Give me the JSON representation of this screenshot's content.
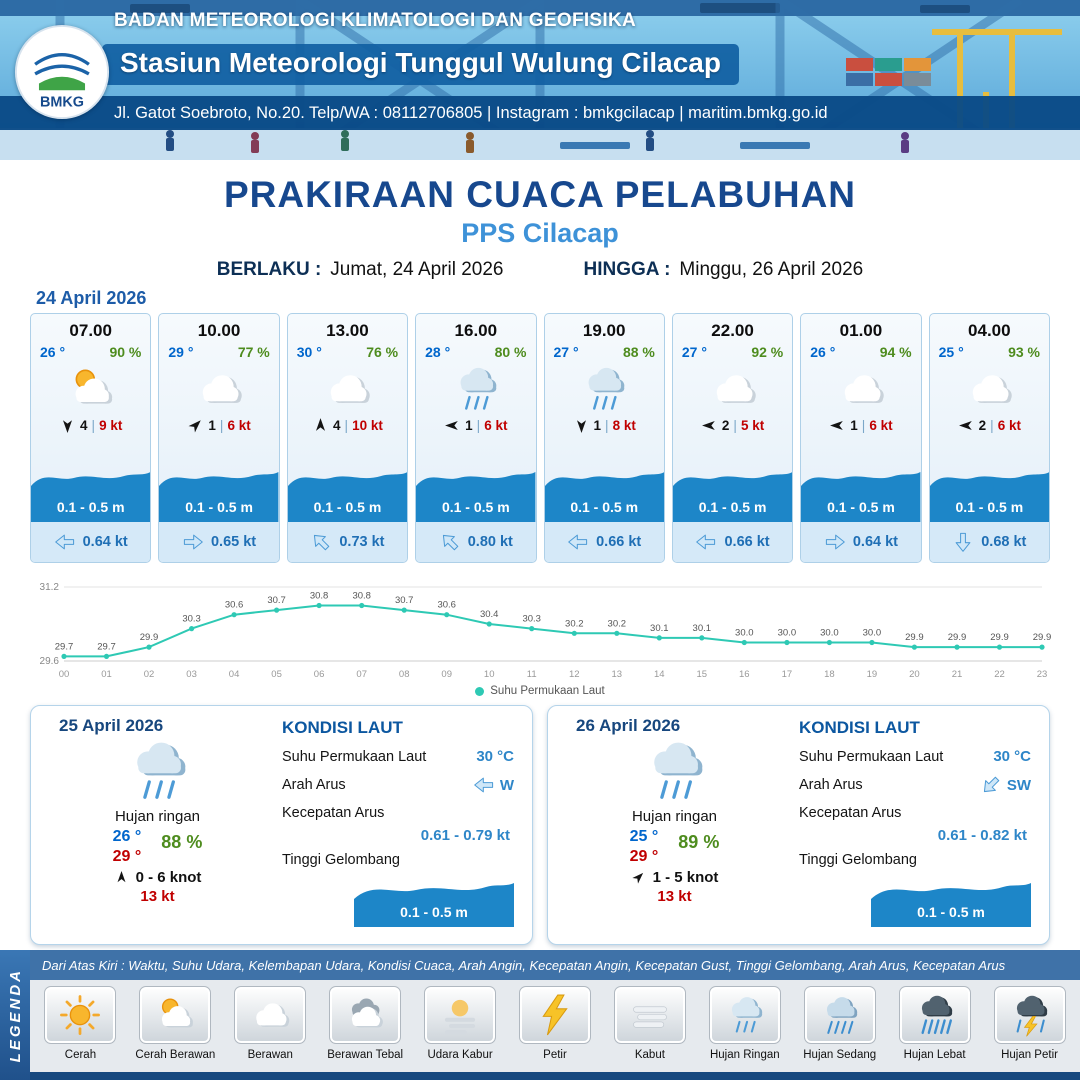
{
  "header": {
    "logo_text": "BMKG",
    "agency": "BADAN METEOROLOGI KLIMATOLOGI DAN GEOFISIKA",
    "station": "Stasiun Meteorologi Tunggul Wulung Cilacap",
    "contact": "Jl. Gatot Soebroto, No.20. Telp/WA : 08112706805 | Instagram : bmkgcilacap | maritim.bmkg.go.id"
  },
  "title": {
    "main": "PRAKIRAAN CUACA PELABUHAN",
    "sub": "PPS Cilacap",
    "valid_from_label": "BERLAKU :",
    "valid_from": "Jumat, 24 April 2026",
    "valid_to_label": "HINGGA :",
    "valid_to": "Minggu, 26 April 2026"
  },
  "hourly_date": "24 April 2026",
  "hourly": [
    {
      "time": "07.00",
      "temp": "26 °",
      "humidity": "90 %",
      "icon": "cerah-berawan",
      "wind_dir": "s",
      "wind_value": "4",
      "wind_speed": "9 kt",
      "wave": "0.1 - 0.5 m",
      "current_dir": "w",
      "current_speed": "0.64 kt"
    },
    {
      "time": "10.00",
      "temp": "29 °",
      "humidity": "77 %",
      "icon": "berawan",
      "wind_dir": "ne",
      "wind_value": "1",
      "wind_speed": "6 kt",
      "wave": "0.1 - 0.5 m",
      "current_dir": "e",
      "current_speed": "0.65 kt"
    },
    {
      "time": "13.00",
      "temp": "30 °",
      "humidity": "76 %",
      "icon": "berawan",
      "wind_dir": "n",
      "wind_value": "4",
      "wind_speed": "10 kt",
      "wave": "0.1 - 0.5 m",
      "current_dir": "nw",
      "current_speed": "0.73 kt"
    },
    {
      "time": "16.00",
      "temp": "28 °",
      "humidity": "80 %",
      "icon": "hujan-ringan",
      "wind_dir": "w",
      "wind_value": "1",
      "wind_speed": "6 kt",
      "wave": "0.1 - 0.5 m",
      "current_dir": "nw",
      "current_speed": "0.80 kt"
    },
    {
      "time": "19.00",
      "temp": "27 °",
      "humidity": "88 %",
      "icon": "hujan-ringan",
      "wind_dir": "s",
      "wind_value": "1",
      "wind_speed": "8 kt",
      "wave": "0.1 - 0.5 m",
      "current_dir": "w",
      "current_speed": "0.66 kt"
    },
    {
      "time": "22.00",
      "temp": "27 °",
      "humidity": "92 %",
      "icon": "berawan",
      "wind_dir": "w",
      "wind_value": "2",
      "wind_speed": "5 kt",
      "wave": "0.1 - 0.5 m",
      "current_dir": "w",
      "current_speed": "0.66 kt"
    },
    {
      "time": "01.00",
      "temp": "26 °",
      "humidity": "94 %",
      "icon": "berawan",
      "wind_dir": "w",
      "wind_value": "1",
      "wind_speed": "6 kt",
      "wave": "0.1 - 0.5 m",
      "current_dir": "e",
      "current_speed": "0.64 kt"
    },
    {
      "time": "04.00",
      "temp": "25 °",
      "humidity": "93 %",
      "icon": "berawan",
      "wind_dir": "w",
      "wind_value": "2",
      "wind_speed": "6 kt",
      "wave": "0.1 - 0.5 m",
      "current_dir": "s",
      "current_speed": "0.68 kt"
    }
  ],
  "chart_data": {
    "type": "line",
    "title": "Suhu Permukaan Laut",
    "x": [
      "00",
      "01",
      "02",
      "03",
      "04",
      "05",
      "06",
      "07",
      "08",
      "09",
      "10",
      "11",
      "12",
      "13",
      "14",
      "15",
      "16",
      "17",
      "18",
      "19",
      "20",
      "21",
      "22",
      "23"
    ],
    "values": [
      29.7,
      29.7,
      29.9,
      30.3,
      30.6,
      30.7,
      30.8,
      30.8,
      30.7,
      30.6,
      30.4,
      30.3,
      30.2,
      30.2,
      30.1,
      30.1,
      30.0,
      30.0,
      30.0,
      30.0,
      29.9,
      29.9,
      29.9,
      29.9
    ],
    "xlabel": "",
    "ylabel": "",
    "ylim": [
      29.6,
      31.2
    ],
    "line_color": "#2ec9b4",
    "grid": false,
    "legend": "Suhu Permukaan Laut",
    "legend_position": "bottom"
  },
  "daily": [
    {
      "date": "25 April 2026",
      "icon": "hujan-ringan",
      "condition": "Hujan ringan",
      "temp_min": "26 °",
      "temp_max": "29 °",
      "humidity": "88 %",
      "wind_dir": "n",
      "wind_range": "0 - 6 knot",
      "gust": "13 kt",
      "sea": {
        "heading": "KONDISI LAUT",
        "sst_label": "Suhu Permukaan Laut",
        "sst": "30 °C",
        "current_dir_label": "Arah Arus",
        "current_dir": "w",
        "current_dir_text": "W",
        "current_speed_label": "Kecepatan Arus",
        "current_speed": "0.61 -  0.79 kt",
        "wave_label": "Tinggi Gelombang",
        "wave": "0.1 - 0.5 m"
      }
    },
    {
      "date": "26 April 2026",
      "icon": "hujan-ringan",
      "condition": "Hujan ringan",
      "temp_min": "25 °",
      "temp_max": "29 °",
      "humidity": "89 %",
      "wind_dir": "ne",
      "wind_range": "1  - 5 knot",
      "gust": "13 kt",
      "sea": {
        "heading": "KONDISI LAUT",
        "sst_label": "Suhu Permukaan Laut",
        "sst": "30 °C",
        "current_dir_label": "Arah Arus",
        "current_dir": "sw",
        "current_dir_text": "SW",
        "current_speed_label": "Kecepatan Arus",
        "current_speed": "0.61 - 0.82 kt",
        "wave_label": "Tinggi Gelombang",
        "wave": "0.1 - 0.5 m"
      }
    }
  ],
  "legend": {
    "title": "LEGENDA",
    "description": "Dari Atas Kiri : Waktu, Suhu Udara, Kelembapan Udara, Kondisi Cuaca, Arah Angin, Kecepatan Angin, Kecepatan Gust, Tinggi Gelombang, Arah Arus, Kecepatan Arus",
    "items": [
      {
        "label": "Cerah",
        "icon": "cerah"
      },
      {
        "label": "Cerah Berawan",
        "icon": "cerah-berawan"
      },
      {
        "label": "Berawan",
        "icon": "berawan"
      },
      {
        "label": "Berawan Tebal",
        "icon": "berawan-tebal"
      },
      {
        "label": "Udara Kabur",
        "icon": "udara-kabur"
      },
      {
        "label": "Petir",
        "icon": "petir"
      },
      {
        "label": "Kabut",
        "icon": "kabut"
      },
      {
        "label": "Hujan Ringan",
        "icon": "hujan-ringan"
      },
      {
        "label": "Hujan Sedang",
        "icon": "hujan-sedang"
      },
      {
        "label": "Hujan Lebat",
        "icon": "hujan-lebat"
      },
      {
        "label": "Hujan Petir",
        "icon": "hujan-petir"
      }
    ]
  },
  "colors": {
    "wave_blue": "#1d86c8",
    "temp_blue": "#0066cc",
    "humidity_green": "#4e8c1e",
    "speed_red": "#c00000",
    "title_navy": "#17488e",
    "subtitle_blue": "#3e92d8",
    "chart_line": "#2ec9b4"
  }
}
